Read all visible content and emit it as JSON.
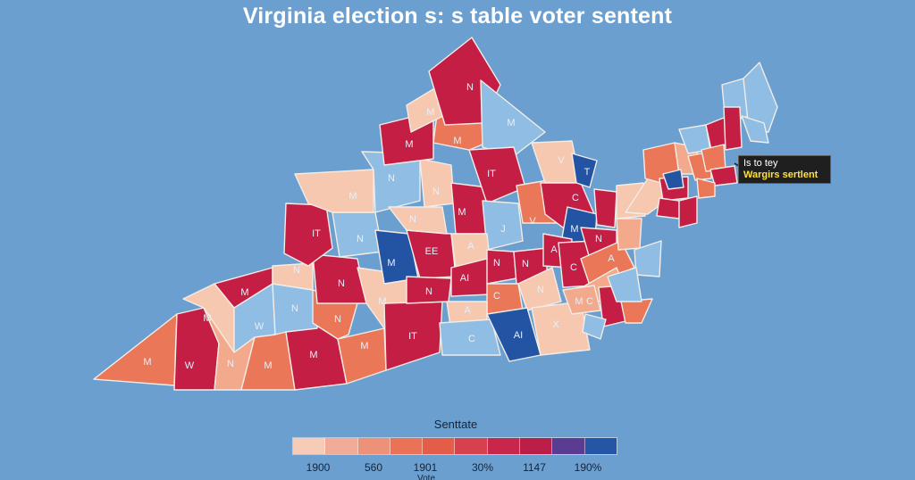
{
  "title": "Virginia election s: s table voter sentent",
  "callout": {
    "line1": "Is to tey",
    "line2": "Wargirs sertlent"
  },
  "legend": {
    "title": "Senttate",
    "ticks": [
      "1900",
      "560",
      "1901",
      "30%",
      "1147",
      "190%"
    ],
    "subtitle": "Vote",
    "colors": [
      "#f6cbb7",
      "#f2ab96",
      "#ee9179",
      "#ea7257",
      "#e45d49",
      "#d6414d",
      "#c8264a",
      "#bb1f48",
      "#5a3c93",
      "#2356a5"
    ]
  },
  "palette": {
    "light_peach": "#f6c8b0",
    "peach": "#f2a98c",
    "salmon": "#ea7757",
    "crimson": "#c41e45",
    "light_blue": "#8fbde3",
    "dark_blue": "#2354a4"
  },
  "county_labels": [
    "M",
    "W",
    "N",
    "M",
    "M",
    "M",
    "W",
    "M",
    "N",
    "N",
    "N",
    "N",
    "M",
    "M",
    "IT",
    "IT",
    "N",
    "M",
    "EE",
    "N",
    "M",
    "N",
    "N",
    "N",
    "M",
    "M",
    "M",
    "M",
    "N",
    "M",
    "IT",
    "J",
    "A",
    "AI",
    "N",
    "N",
    "C",
    "N",
    "A",
    "C",
    "AI",
    "X",
    "V",
    "V",
    "C",
    "T",
    "M",
    "A",
    "C",
    "N",
    "A",
    "C",
    "M"
  ]
}
